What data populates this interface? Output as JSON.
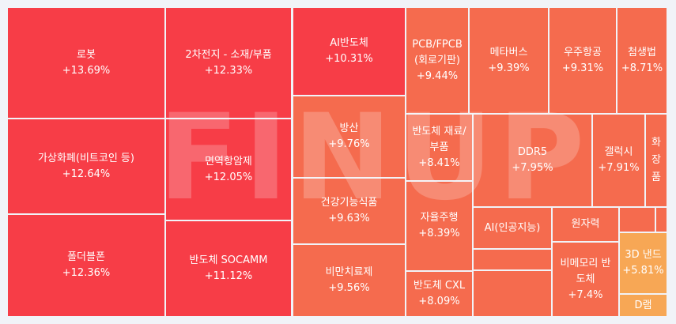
{
  "chart_data": {
    "type": "treemap",
    "title": "",
    "colors": {
      "hot": "#f73d47",
      "warm": "#f56b4e",
      "mid": "#f4784f",
      "yellow": "#f7a755",
      "background": "#f1f3f8"
    },
    "tiles": [
      {
        "name": "로봇",
        "change": "+13.69%",
        "value": 13.69
      },
      {
        "name": "2차전지 - 소재/부품",
        "change": "+12.33%",
        "value": 12.33
      },
      {
        "name": "AI반도체",
        "change": "+10.31%",
        "value": 10.31
      },
      {
        "name": "PCB/FPCB\n(회로기판)",
        "change": "+9.44%",
        "value": 9.44
      },
      {
        "name": "메타버스",
        "change": "+9.39%",
        "value": 9.39
      },
      {
        "name": "우주항공",
        "change": "+9.31%",
        "value": 9.31
      },
      {
        "name": "첨생법",
        "change": "+8.71%",
        "value": 8.71
      },
      {
        "name": "가상화폐(비트코인 등)",
        "change": "+12.64%",
        "value": 12.64
      },
      {
        "name": "면역항암제",
        "change": "+12.05%",
        "value": 12.05
      },
      {
        "name": "방산",
        "change": "+9.76%",
        "value": 9.76
      },
      {
        "name": "반도체 재료/\n부품",
        "change": "+8.41%",
        "value": 8.41
      },
      {
        "name": "DDR5",
        "change": "+7.95%",
        "value": 7.95
      },
      {
        "name": "갤럭시",
        "change": "+7.91%",
        "value": 7.91
      },
      {
        "name": "화\n장\n품",
        "change": "",
        "value": null
      },
      {
        "name": "건강기능식품",
        "change": "+9.63%",
        "value": 9.63
      },
      {
        "name": "자율주행",
        "change": "+8.39%",
        "value": 8.39
      },
      {
        "name": "AI(인공지능)",
        "change": "",
        "value": null
      },
      {
        "name": "원자력",
        "change": "",
        "value": null
      },
      {
        "name": "폴더블폰",
        "change": "+12.36%",
        "value": 12.36
      },
      {
        "name": "반도체 SOCAMM",
        "change": "+11.12%",
        "value": 11.12
      },
      {
        "name": "비만치료제",
        "change": "+9.56%",
        "value": 9.56
      },
      {
        "name": "반도체 CXL",
        "change": "+8.09%",
        "value": 8.09
      },
      {
        "name": "비메모리 반\n도체",
        "change": "+7.4%",
        "value": 7.4
      },
      {
        "name": "3D 낸드",
        "change": "+5.81%",
        "value": 5.81
      },
      {
        "name": "D램",
        "change": "",
        "value": null
      },
      {
        "name": "",
        "change": "",
        "value": null
      },
      {
        "name": "",
        "change": "",
        "value": null
      },
      {
        "name": "",
        "change": "",
        "value": null
      },
      {
        "name": "",
        "change": "",
        "value": null
      },
      {
        "name": "",
        "change": "",
        "value": null
      }
    ],
    "watermark": "FINUP"
  }
}
